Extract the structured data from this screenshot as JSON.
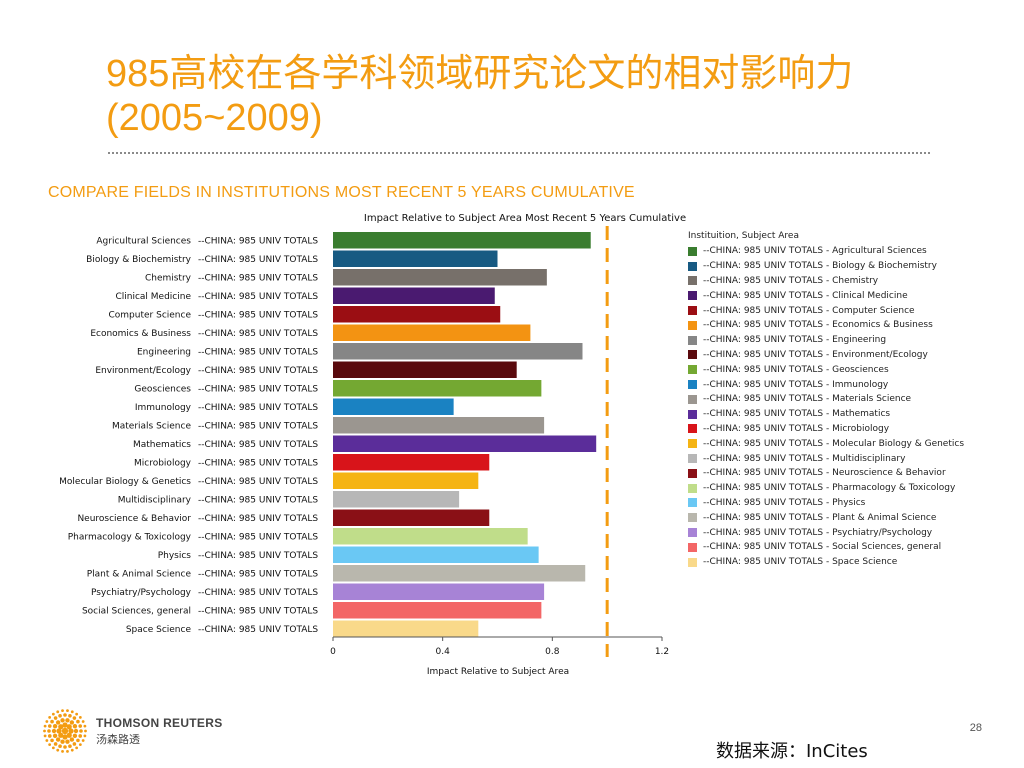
{
  "slide": {
    "title": "985高校在各学科领域研究论文的相对影响力(2005~2009)",
    "chart_heading": "COMPARE FIELDS IN INSTITUTIONS MOST RECENT 5 YEARS CUMULATIVE",
    "source": "数据来源：InCites",
    "page_number": "28",
    "brand_name": "THOMSON REUTERS",
    "brand_cn": "汤森路透",
    "logo_icon": "thomson-reuters-dot-logo"
  },
  "chart_data": {
    "type": "bar",
    "orientation": "horizontal",
    "title": "Impact Relative to Subject Area Most Recent 5 Years Cumulative",
    "xlabel": "Impact Relative to Subject Area",
    "xlim": [
      0,
      1.2
    ],
    "xticks": [
      "0",
      "0.4",
      "0.8",
      "1.2"
    ],
    "reference_line": {
      "x": 1.0,
      "style": "dashed",
      "color": "#f39c12"
    },
    "legend_title": "Instituition, Subject Area",
    "institution_label": "--CHINA: 985 UNIV TOTALS",
    "categories": [
      "Agricultural Sciences",
      "Biology & Biochemistry",
      "Chemistry",
      "Clinical Medicine",
      "Computer Science",
      "Economics & Business",
      "Engineering",
      "Environment/Ecology",
      "Geosciences",
      "Immunology",
      "Materials Science",
      "Mathematics",
      "Microbiology",
      "Molecular Biology & Genetics",
      "Multidisciplinary",
      "Neuroscience & Behavior",
      "Pharmacology & Toxicology",
      "Physics",
      "Plant & Animal Science",
      "Psychiatry/Psychology",
      "Social Sciences, general",
      "Space Science"
    ],
    "values": [
      0.94,
      0.6,
      0.78,
      0.59,
      0.61,
      0.72,
      0.91,
      0.67,
      0.76,
      0.44,
      0.77,
      0.96,
      0.57,
      0.53,
      0.46,
      0.57,
      0.71,
      0.75,
      0.92,
      0.77,
      0.76,
      0.53
    ],
    "colors": [
      "#3a7d2f",
      "#175a82",
      "#77706a",
      "#4a1a70",
      "#9b0e13",
      "#f39312",
      "#868686",
      "#5a0a0d",
      "#74a832",
      "#1a82c2",
      "#9b9690",
      "#5b2d9a",
      "#d8141a",
      "#f5b414",
      "#b7b7b7",
      "#8a1016",
      "#c0dd8a",
      "#6ac8f4",
      "#b9b7ad",
      "#a783d6",
      "#f36666",
      "#f9d98a"
    ],
    "legend_entries": [
      "--CHINA: 985 UNIV TOTALS - Agricultural Sciences",
      "--CHINA: 985 UNIV TOTALS - Biology & Biochemistry",
      "--CHINA: 985 UNIV TOTALS - Chemistry",
      "--CHINA: 985 UNIV TOTALS - Clinical Medicine",
      "--CHINA: 985 UNIV TOTALS - Computer Science",
      "--CHINA: 985 UNIV TOTALS - Economics & Business",
      "--CHINA: 985 UNIV TOTALS - Engineering",
      "--CHINA: 985 UNIV TOTALS - Environment/Ecology",
      "--CHINA: 985 UNIV TOTALS - Geosciences",
      "--CHINA: 985 UNIV TOTALS - Immunology",
      "--CHINA: 985 UNIV TOTALS - Materials Science",
      "--CHINA: 985 UNIV TOTALS - Mathematics",
      "--CHINA: 985 UNIV TOTALS - Microbiology",
      "--CHINA: 985 UNIV TOTALS - Molecular Biology & Genetics",
      "--CHINA: 985 UNIV TOTALS - Multidisciplinary",
      "--CHINA: 985 UNIV TOTALS - Neuroscience & Behavior",
      "--CHINA: 985 UNIV TOTALS - Pharmacology & Toxicology",
      "--CHINA: 985 UNIV TOTALS - Physics",
      "--CHINA: 985 UNIV TOTALS - Plant & Animal Science",
      "--CHINA: 985 UNIV TOTALS - Psychiatry/Psychology",
      "--CHINA: 985 UNIV TOTALS - Social Sciences, general",
      "--CHINA: 985 UNIV TOTALS - Space Science"
    ],
    "grid": false,
    "legend_position": "right"
  }
}
